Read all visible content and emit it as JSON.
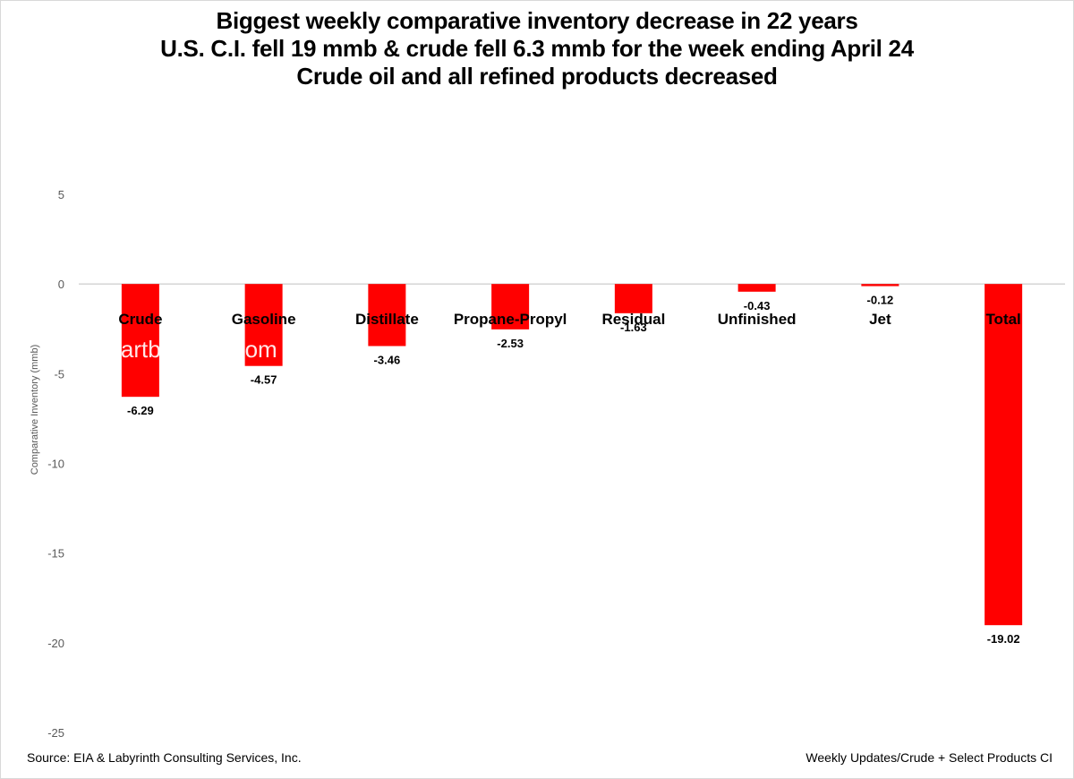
{
  "title_lines": [
    "Biggest weekly comparative inventory decrease in 22 years",
    "U.S. C.I. fell 19 mmb & crude fell 6.3 mmb for the week ending April 24",
    "Crude oil and all refined products decreased"
  ],
  "source": "Source:  EIA & Labyrinth Consulting Services, Inc.",
  "footer_right": "Weekly Updates/Crude + Select Products CI",
  "watermark": "artberman.com",
  "colors": {
    "bar": "#ff0000",
    "axis": "#bfbfbf",
    "text": "#000000",
    "tick": "#595959"
  },
  "chart_data": {
    "type": "bar",
    "categories": [
      "Crude",
      "Gasoline",
      "Distillate",
      "Propane-Propyl",
      "Residual",
      "Unfinished",
      "Jet",
      "Total"
    ],
    "values": [
      -6.29,
      -4.57,
      -3.46,
      -2.53,
      -1.63,
      -0.43,
      -0.12,
      -19.02
    ],
    "data_labels": [
      "-6.29",
      "-4.57",
      "-3.46",
      "-2.53",
      "-1.63",
      "-0.43",
      "-0.12",
      "-19.02"
    ],
    "ylabel": "Comparative Inventory (mmb)",
    "ylim": [
      -25,
      5
    ],
    "yticks": [
      5,
      0,
      -5,
      -10,
      -15,
      -20,
      -25
    ],
    "grid": false,
    "legend": "none"
  }
}
